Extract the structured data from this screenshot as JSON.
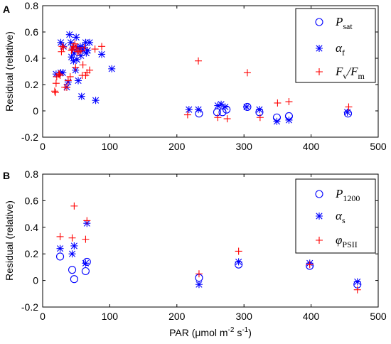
{
  "chart_data": [
    {
      "type": "scatter",
      "panel_label": "A",
      "title": "",
      "xlabel": "",
      "ylabel": "Residual (relative)",
      "xlim": [
        0,
        500
      ],
      "ylim": [
        -0.2,
        0.8
      ],
      "xticks": [
        0,
        100,
        200,
        300,
        400,
        500
      ],
      "yticks": [
        -0.2,
        0,
        0.2,
        0.4,
        0.6,
        0.8
      ],
      "xtick_labels": [
        "0",
        "100",
        "200",
        "300",
        "400",
        "500"
      ],
      "ytick_labels": [
        "-0.2",
        "0",
        "0.2",
        "0.4",
        "0.6",
        "0.8"
      ],
      "grid": false,
      "legend_position": "top-right",
      "series": [
        {
          "name": "P_sat",
          "legend_main": "P",
          "legend_sub": "sat",
          "legend_main2": "",
          "legend_sub2": "",
          "marker": "circle",
          "color": "#0000ff",
          "points": [
            [
              233,
              -0.02
            ],
            [
              260,
              -0.01
            ],
            [
              268,
              -0.01
            ],
            [
              274,
              0.01
            ],
            [
              305,
              0.03
            ],
            [
              323,
              -0.01
            ],
            [
              349,
              -0.05
            ],
            [
              367,
              -0.04
            ],
            [
              455,
              -0.02
            ]
          ]
        },
        {
          "name": "alpha_f",
          "legend_main": "α",
          "legend_sub": "f",
          "legend_main2": "",
          "legend_sub2": "",
          "marker": "asterisk",
          "color": "#0000ff",
          "points": [
            [
              20,
              0.28
            ],
            [
              27,
              0.29
            ],
            [
              30,
              0.29
            ],
            [
              36,
              0.18
            ],
            [
              38,
              0.22
            ],
            [
              40,
              0.58
            ],
            [
              42,
              0.52
            ],
            [
              43,
              0.41
            ],
            [
              45,
              0.48
            ],
            [
              46,
              0.38
            ],
            [
              47,
              0.44
            ],
            [
              49,
              0.31
            ],
            [
              50,
              0.56
            ],
            [
              51,
              0.39
            ],
            [
              52,
              0.48
            ],
            [
              53,
              0.23
            ],
            [
              55,
              0.47
            ],
            [
              56,
              0.49
            ],
            [
              57,
              0.42
            ],
            [
              58,
              0.11
            ],
            [
              60,
              0.46
            ],
            [
              62,
              0.48
            ],
            [
              64,
              0.52
            ],
            [
              65,
              0.44
            ],
            [
              67,
              0.46
            ],
            [
              70,
              0.52
            ],
            [
              79,
              0.08
            ],
            [
              88,
              0.43
            ],
            [
              103,
              0.32
            ],
            [
              27,
              0.52
            ],
            [
              31,
              0.49
            ],
            [
              218,
              0.01
            ],
            [
              232,
              0.01
            ],
            [
              261,
              0.04
            ],
            [
              266,
              0.05
            ],
            [
              272,
              0.03
            ],
            [
              304,
              0.03
            ],
            [
              323,
              0.01
            ],
            [
              349,
              -0.08
            ],
            [
              367,
              -0.07
            ],
            [
              454,
              -0.01
            ]
          ]
        },
        {
          "name": "Fv/Fm",
          "legend_main": "F",
          "legend_sub": "v",
          "legend_main2": "/F",
          "legend_sub2": "m",
          "marker": "plus",
          "color": "#ff0000",
          "points": [
            [
              18,
              0.15
            ],
            [
              19,
              0.14
            ],
            [
              20,
              0.21
            ],
            [
              21,
              0.26
            ],
            [
              24,
              0.28
            ],
            [
              25,
              0.28
            ],
            [
              26,
              0.27
            ],
            [
              28,
              0.45
            ],
            [
              29,
              0.49
            ],
            [
              31,
              0.48
            ],
            [
              33,
              0.18
            ],
            [
              36,
              0.18
            ],
            [
              38,
              0.23
            ],
            [
              41,
              0.26
            ],
            [
              43,
              0.46
            ],
            [
              44,
              0.47
            ],
            [
              46,
              0.49
            ],
            [
              48,
              0.51
            ],
            [
              49,
              0.33
            ],
            [
              50,
              0.48
            ],
            [
              52,
              0.45
            ],
            [
              54,
              0.45
            ],
            [
              57,
              0.46
            ],
            [
              59,
              0.27
            ],
            [
              60,
              0.35
            ],
            [
              62,
              0.48
            ],
            [
              64,
              0.27
            ],
            [
              66,
              0.29
            ],
            [
              70,
              0.31
            ],
            [
              78,
              0.47
            ],
            [
              88,
              0.49
            ],
            [
              216,
              -0.03
            ],
            [
              232,
              0.38
            ],
            [
              261,
              -0.05
            ],
            [
              275,
              -0.06
            ],
            [
              305,
              0.29
            ],
            [
              324,
              -0.05
            ],
            [
              350,
              0.06
            ],
            [
              367,
              0.07
            ],
            [
              456,
              0.03
            ]
          ]
        }
      ]
    },
    {
      "type": "scatter",
      "panel_label": "B",
      "title": "",
      "xlabel": "PAR (μmol m⁻² s⁻¹)",
      "xlabel_parts": {
        "pre": "PAR (μmol m",
        "sup1": "-2",
        "mid": " s",
        "sup2": "-1",
        "post": ")"
      },
      "ylabel": "Residual (relative)",
      "xlim": [
        0,
        500
      ],
      "ylim": [
        -0.2,
        0.8
      ],
      "xticks": [
        0,
        100,
        200,
        300,
        400,
        500
      ],
      "yticks": [
        -0.2,
        0,
        0.2,
        0.4,
        0.6,
        0.8
      ],
      "xtick_labels": [
        "0",
        "100",
        "200",
        "300",
        "400",
        "500"
      ],
      "ytick_labels": [
        "-0.2",
        "0",
        "0.2",
        "0.4",
        "0.6",
        "0.8"
      ],
      "grid": false,
      "legend_position": "top-right",
      "series": [
        {
          "name": "P_1200",
          "legend_main": "P",
          "legend_sub": "1200",
          "legend_main2": "",
          "legend_sub2": "",
          "marker": "circle",
          "color": "#0000ff",
          "points": [
            [
              26,
              0.18
            ],
            [
              44,
              0.08
            ],
            [
              47,
              0.01
            ],
            [
              64,
              0.07
            ],
            [
              66,
              0.14
            ],
            [
              233,
              0.02
            ],
            [
              292,
              0.12
            ],
            [
              398,
              0.11
            ],
            [
              469,
              -0.03
            ]
          ]
        },
        {
          "name": "alpha_s",
          "legend_main": "α",
          "legend_sub": "s",
          "legend_main2": "",
          "legend_sub2": "",
          "marker": "asterisk",
          "color": "#0000ff",
          "points": [
            [
              26,
              0.24
            ],
            [
              44,
              0.2
            ],
            [
              47,
              0.26
            ],
            [
              64,
              0.13
            ],
            [
              66,
              0.43
            ],
            [
              233,
              -0.03
            ],
            [
              292,
              0.14
            ],
            [
              398,
              0.13
            ],
            [
              469,
              -0.01
            ]
          ]
        },
        {
          "name": "φPSII",
          "legend_main": "φ",
          "legend_sub": "PSII",
          "legend_main2": "",
          "legend_sub2": "",
          "marker": "plus",
          "color": "#ff0000",
          "points": [
            [
              26,
              0.33
            ],
            [
              44,
              0.32
            ],
            [
              47,
              0.56
            ],
            [
              64,
              0.31
            ],
            [
              66,
              0.45
            ],
            [
              233,
              0.05
            ],
            [
              292,
              0.22
            ],
            [
              398,
              0.12
            ],
            [
              469,
              -0.07
            ]
          ]
        }
      ]
    }
  ]
}
